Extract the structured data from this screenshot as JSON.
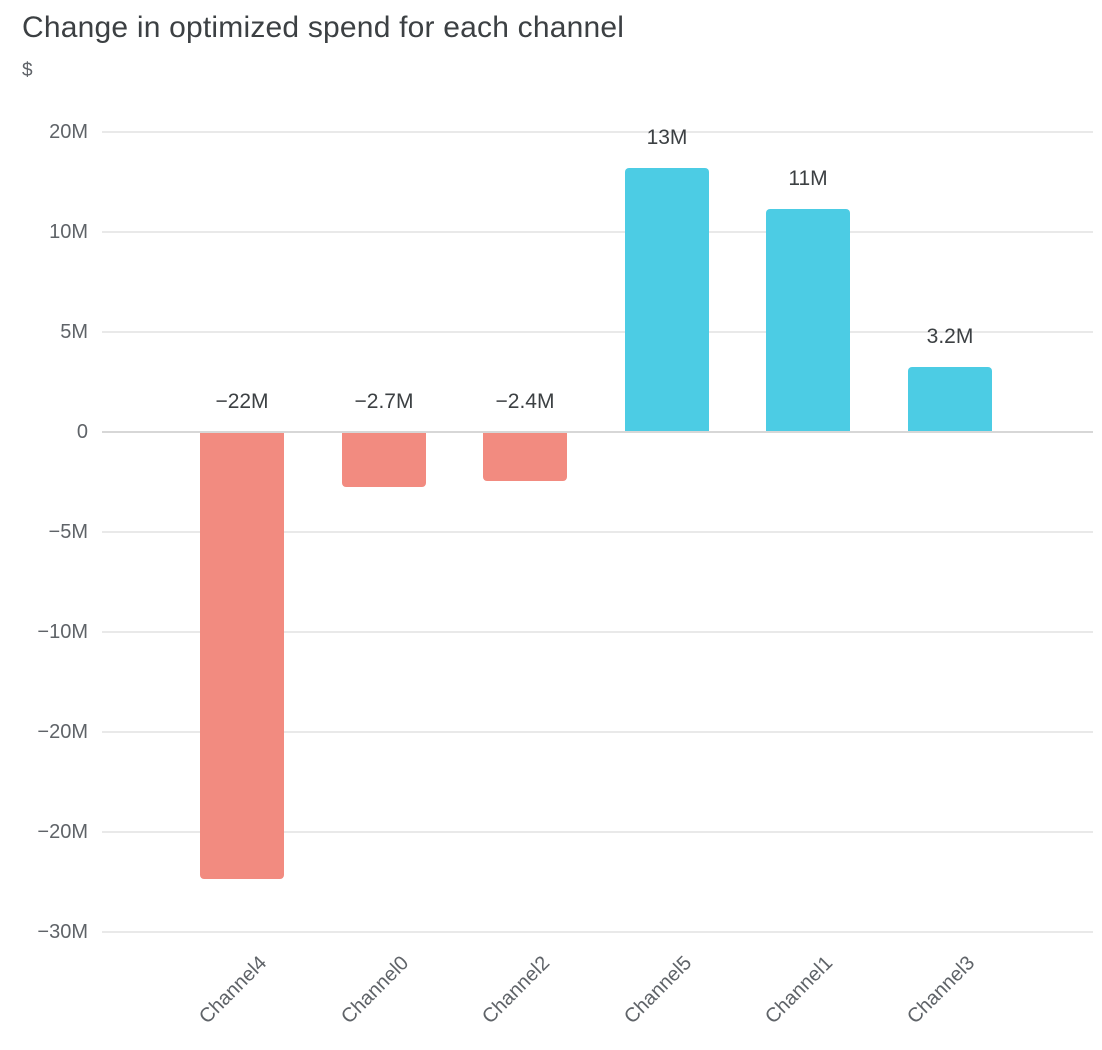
{
  "title": "Change in optimized spend for each channel",
  "chart_data": {
    "type": "bar",
    "title": "Change in optimized spend for each channel",
    "xlabel": "",
    "ylabel": "$",
    "categories": [
      "Channel4",
      "Channel0",
      "Channel2",
      "Channel5",
      "Channel1",
      "Channel3"
    ],
    "values_millions": [
      -22,
      -2.7,
      -2.4,
      13,
      11,
      3.2
    ],
    "value_labels": [
      "−22M",
      "−2.7M",
      "−2.4M",
      "13M",
      "11M",
      "3.2M"
    ],
    "y_tick_labels": [
      "20M",
      "10M",
      "5M",
      "0",
      "−5M",
      "−10M",
      "−20M",
      "−20M",
      "−30M"
    ],
    "grid": true,
    "legend": "none",
    "x_label_angle_deg": -45,
    "bar_colors": {
      "negative": "#F28B80",
      "positive": "#4CCCE4"
    },
    "text_colors": {
      "title": "#3C4043",
      "axis": "#5F6368",
      "value_label": "#3C4043"
    },
    "gridline_colors": {
      "normal": "#E9E9E9",
      "zero": "#D7D7D7"
    }
  }
}
